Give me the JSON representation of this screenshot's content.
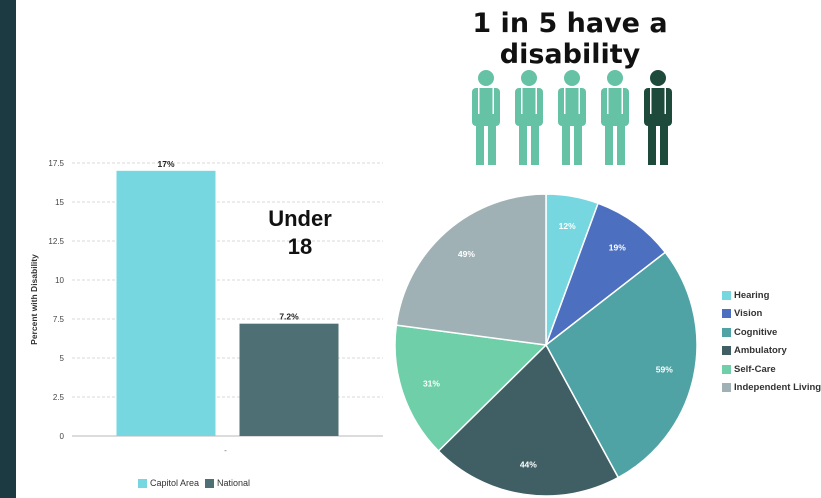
{
  "headline": "1 in 5 have a disability",
  "people": {
    "total": 5,
    "highlighted": 1,
    "base_color": "#66c2a5",
    "highlight_color": "#1e4a3c"
  },
  "under18_lines": [
    "Under",
    "18"
  ],
  "colors": {
    "capitol_area": "#76d7e0",
    "national": "#4e6f73",
    "Hearing": "#76d7e0",
    "Vision": "#4c6fbf",
    "Cognitive": "#4fa3a5",
    "Ambulatory": "#3f5f65",
    "Self-Care": "#6fcfa9",
    "Independent Living": "#9fb1b5"
  },
  "chart_data": [
    {
      "type": "bar",
      "categories": [
        "Capitol Area",
        "National"
      ],
      "values": [
        17,
        7.2
      ],
      "data_labels": [
        "17%",
        "7.2%"
      ],
      "title": "",
      "xlabel": "",
      "ylabel": "Percent with Disability",
      "ylim": [
        0,
        17.5
      ],
      "yticks": [
        0,
        2.5,
        5,
        7.5,
        10,
        12.5,
        15,
        17.5
      ],
      "ytick_labels": [
        "0",
        "2.5",
        "5",
        "7.5",
        "10",
        "12.5",
        "15",
        "17.5"
      ],
      "xtick_label": "-",
      "grid": true,
      "legend": {
        "position": "bottom",
        "entries": [
          "Capitol Area",
          "National"
        ]
      }
    },
    {
      "type": "pie",
      "labels": [
        "Hearing",
        "Vision",
        "Cognitive",
        "Ambulatory",
        "Self-Care",
        "Independent Living"
      ],
      "values": [
        12,
        19,
        59,
        44,
        31,
        49
      ],
      "data_labels": [
        "12%",
        "19%",
        "59%",
        "44%",
        "31%",
        "49%"
      ],
      "start_angle": 0,
      "legend": {
        "position": "right",
        "entries": [
          "Hearing",
          "Vision",
          "Cognitive",
          "Ambulatory",
          "Self-Care",
          "Independent Living"
        ]
      }
    }
  ]
}
